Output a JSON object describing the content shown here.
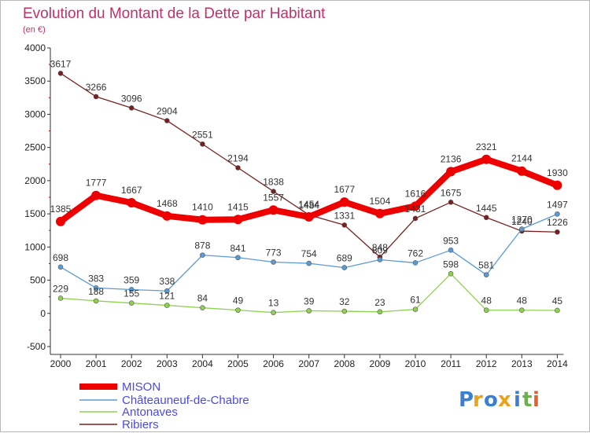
{
  "chart_data": {
    "type": "line",
    "title": "Evolution du Montant de la Dette par Habitant",
    "ylabel": "(en €)",
    "xlabel": "",
    "ylim": [
      -500,
      4000
    ],
    "yticks": [
      4000,
      3500,
      3000,
      2500,
      2000,
      1500,
      1000,
      500,
      0,
      -500
    ],
    "categories": [
      "2000",
      "2001",
      "2002",
      "2003",
      "2004",
      "2005",
      "2006",
      "2007",
      "2008",
      "2009",
      "2010",
      "2011",
      "2012",
      "2013",
      "2014"
    ],
    "grid": false,
    "legend_position": "bottom-left",
    "series": [
      {
        "name": "Ribiers",
        "color": "#7a1f1f",
        "values": [
          3617,
          3266,
          3096,
          2904,
          2551,
          2194,
          1838,
          1484,
          1331,
          848,
          1431,
          1675,
          1445,
          1240,
          1226
        ]
      },
      {
        "name": "Antonaves",
        "color": "#8fd14f",
        "values": [
          229,
          188,
          155,
          121,
          84,
          49,
          13,
          39,
          32,
          23,
          61,
          598,
          48,
          48,
          45
        ]
      },
      {
        "name": "Châteauneuf-de-Chabre",
        "color": "#5a9bd5",
        "values": [
          698,
          383,
          359,
          338,
          878,
          841,
          773,
          754,
          689,
          809,
          762,
          953,
          581,
          1270,
          1497
        ]
      },
      {
        "name": "MISON",
        "color": "#ee0000",
        "values": [
          1385,
          1777,
          1667,
          1468,
          1410,
          1415,
          1557,
          1454,
          1677,
          1504,
          1616,
          2136,
          2321,
          2144,
          1930
        ]
      }
    ]
  },
  "legend_order": [
    "MISON",
    "Châteauneuf-de-Chabre",
    "Antonaves",
    "Ribiers"
  ],
  "logo": {
    "letters": [
      "P",
      "r",
      "o",
      "x",
      "i",
      "t",
      "i"
    ],
    "colors": [
      "#3a7fd0",
      "#e8a21c",
      "#3a7fd0",
      "#e8a21c",
      "#3a7fd0",
      "#6ab04c",
      "#e06030"
    ]
  }
}
